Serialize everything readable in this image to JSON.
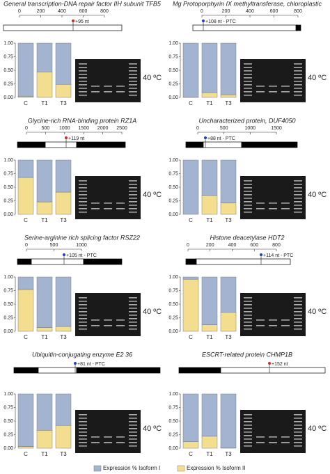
{
  "legend": [
    {
      "name": "Expression % Isoform I",
      "color": "#a3b4d1"
    },
    {
      "name": "Expression % Isoform II",
      "color": "#f3dd8e"
    }
  ],
  "chart_data": [
    {
      "type": "bar",
      "title": "General transcription-DNA repair factor IIH subunit TFB5",
      "scale": {
        "xlim": [
          0,
          800
        ],
        "xticks": [
          0,
          200,
          400,
          600,
          800
        ]
      },
      "site_label": "+95 nt",
      "site_color": "#d62728",
      "categories": [
        "C",
        "T1",
        "T3"
      ],
      "series": [
        {
          "values": [
            0.98,
            0.53,
            0.76
          ]
        },
        {
          "values": [
            0.02,
            0.47,
            0.24
          ]
        }
      ],
      "ylim": [
        0,
        1
      ],
      "yticks": [
        {
          "value": 0,
          "label": "0.00"
        },
        {
          "value": 0.25,
          "label": "0.25"
        },
        {
          "value": 0.5,
          "label": "0.50"
        },
        {
          "value": 0.75,
          "label": "0.75"
        },
        {
          "value": 1,
          "label": "1.00"
        }
      ],
      "condition": "40 ºC"
    },
    {
      "type": "bar",
      "title": "Mg Protoporphyrin IX methyltransferase, chloroplastic",
      "scale": {
        "xlim": [
          0,
          800
        ],
        "xticks": [
          0,
          200,
          400,
          600,
          800
        ]
      },
      "site_label": "+108 nt - PTC",
      "site_color": "#1f3fbf",
      "categories": [
        "C",
        "T1",
        "T3"
      ],
      "series": [
        {
          "values": [
            0.99,
            0.91,
            0.95
          ]
        },
        {
          "values": [
            0.01,
            0.09,
            0.05
          ]
        }
      ],
      "ylim": [
        0,
        1
      ],
      "yticks": [
        {
          "value": 0,
          "label": "0.00"
        },
        {
          "value": 0.25,
          "label": "0.25"
        },
        {
          "value": 0.5,
          "label": "0.50"
        },
        {
          "value": 0.75,
          "label": "0.75"
        },
        {
          "value": 1,
          "label": "1.00"
        }
      ],
      "condition": "40 ºC"
    },
    {
      "type": "bar",
      "title": "Glycine-rich RNA-binding protein RZ1A",
      "scale": {
        "xlim": [
          0,
          2500
        ],
        "xticks": [
          0,
          500,
          1000,
          1500,
          2000,
          2500
        ]
      },
      "site_label": "+119 nt",
      "site_color": "#d62728",
      "categories": [
        "C",
        "T1",
        "T3"
      ],
      "series": [
        {
          "values": [
            0.32,
            0.77,
            0.59
          ]
        },
        {
          "values": [
            0.68,
            0.23,
            0.41
          ]
        }
      ],
      "ylim": [
        0,
        1
      ],
      "yticks": [
        {
          "value": 0,
          "label": "0.00"
        },
        {
          "value": 0.25,
          "label": "0.25"
        },
        {
          "value": 0.5,
          "label": "0.50"
        },
        {
          "value": 0.75,
          "label": "0.75"
        },
        {
          "value": 1,
          "label": "1.00"
        }
      ],
      "condition": "40 ºC"
    },
    {
      "type": "bar",
      "title": "Uncharacterized protein, DUF4050",
      "scale": {
        "xlim": [
          0,
          1500
        ],
        "xticks": [
          0,
          500,
          1000,
          1500
        ]
      },
      "site_label": "+88 nt - PTC",
      "site_color": "#1f3fbf",
      "categories": [
        "C",
        "T1",
        "T3"
      ],
      "series": [
        {
          "values": [
            1,
            0.65,
            0.79
          ]
        },
        {
          "values": [
            0,
            0.35,
            0.21
          ]
        }
      ],
      "ylim": [
        0,
        1
      ],
      "yticks": [
        {
          "value": 0,
          "label": "0.00"
        },
        {
          "value": 0.25,
          "label": "0.25"
        },
        {
          "value": 0.5,
          "label": "0.50"
        },
        {
          "value": 0.75,
          "label": "0.75"
        },
        {
          "value": 1,
          "label": "1.00"
        }
      ],
      "condition": "40 ºC"
    },
    {
      "type": "bar",
      "title": "Serine-arginine rich splicing factor RSZ22",
      "scale": {
        "xlim": [
          0,
          1000
        ],
        "xticks": [
          0,
          500,
          1000
        ]
      },
      "site_label": "+105 nt - PTC",
      "site_color": "#1f3fbf",
      "categories": [
        "C",
        "T1",
        "T3"
      ],
      "series": [
        {
          "values": [
            0.23,
            0.93,
            0.91
          ]
        },
        {
          "values": [
            0.77,
            0.07,
            0.09
          ]
        }
      ],
      "ylim": [
        0,
        1
      ],
      "yticks": [
        {
          "value": 0,
          "label": "0.00"
        },
        {
          "value": 0.25,
          "label": "0.25"
        },
        {
          "value": 0.5,
          "label": "0.50"
        },
        {
          "value": 0.75,
          "label": "0.75"
        },
        {
          "value": 1,
          "label": "1.00"
        }
      ],
      "condition": "40 ºC"
    },
    {
      "type": "bar",
      "title": "Histone deacetylase HDT2",
      "scale": {
        "xlim": [
          0,
          800
        ],
        "xticks": [
          0,
          200,
          400,
          600,
          800
        ]
      },
      "site_label": "+114 nt - PTC",
      "site_color": "#1f3fbf",
      "categories": [
        "C",
        "T1",
        "T3"
      ],
      "series": [
        {
          "values": [
            0.04,
            0.88,
            0.65
          ]
        },
        {
          "values": [
            0.96,
            0.12,
            0.35
          ]
        }
      ],
      "ylim": [
        0,
        1
      ],
      "yticks": [
        {
          "value": 0,
          "label": "0.00"
        },
        {
          "value": 0.25,
          "label": "0.25"
        },
        {
          "value": 0.5,
          "label": "0.50"
        },
        {
          "value": 0.75,
          "label": "0.75"
        },
        {
          "value": 1,
          "label": "1.00"
        }
      ],
      "condition": "40 ºC"
    },
    {
      "type": "bar",
      "title": "Ubiquitin-conjugating enzyme E2 36",
      "site_label": "+81 nt - PTC",
      "site_color": "#1f3fbf",
      "categories": [
        "C",
        "T1",
        "T3"
      ],
      "series": [
        {
          "values": [
            0.97,
            0.67,
            0.58
          ]
        },
        {
          "values": [
            0.03,
            0.33,
            0.42
          ]
        }
      ],
      "ylim": [
        0,
        1
      ],
      "yticks": [
        {
          "value": 0,
          "label": "0.00"
        },
        {
          "value": 0.25,
          "label": "0.25"
        },
        {
          "value": 0.5,
          "label": "0.50"
        },
        {
          "value": 0.75,
          "label": "0.75"
        },
        {
          "value": 1,
          "label": "1.00"
        }
      ],
      "condition": "40 ºC"
    },
    {
      "type": "bar",
      "title": "ESCRT-related protein CHMP1B",
      "site_label": "+152 nt",
      "site_color": "#d62728",
      "categories": [
        "C",
        "T1",
        "T3"
      ],
      "series": [
        {
          "values": [
            0.88,
            0.78,
            0.99
          ]
        },
        {
          "values": [
            0.12,
            0.22,
            0.01
          ]
        }
      ],
      "ylim": [
        0,
        1
      ],
      "yticks": [
        {
          "value": 0,
          "label": "0.00"
        },
        {
          "value": 0.25,
          "label": "0.25"
        },
        {
          "value": 0.5,
          "label": "0.50"
        },
        {
          "value": 0.75,
          "label": "0.75"
        },
        {
          "value": 1,
          "label": "1.00"
        }
      ],
      "condition": "40 ºC"
    }
  ]
}
